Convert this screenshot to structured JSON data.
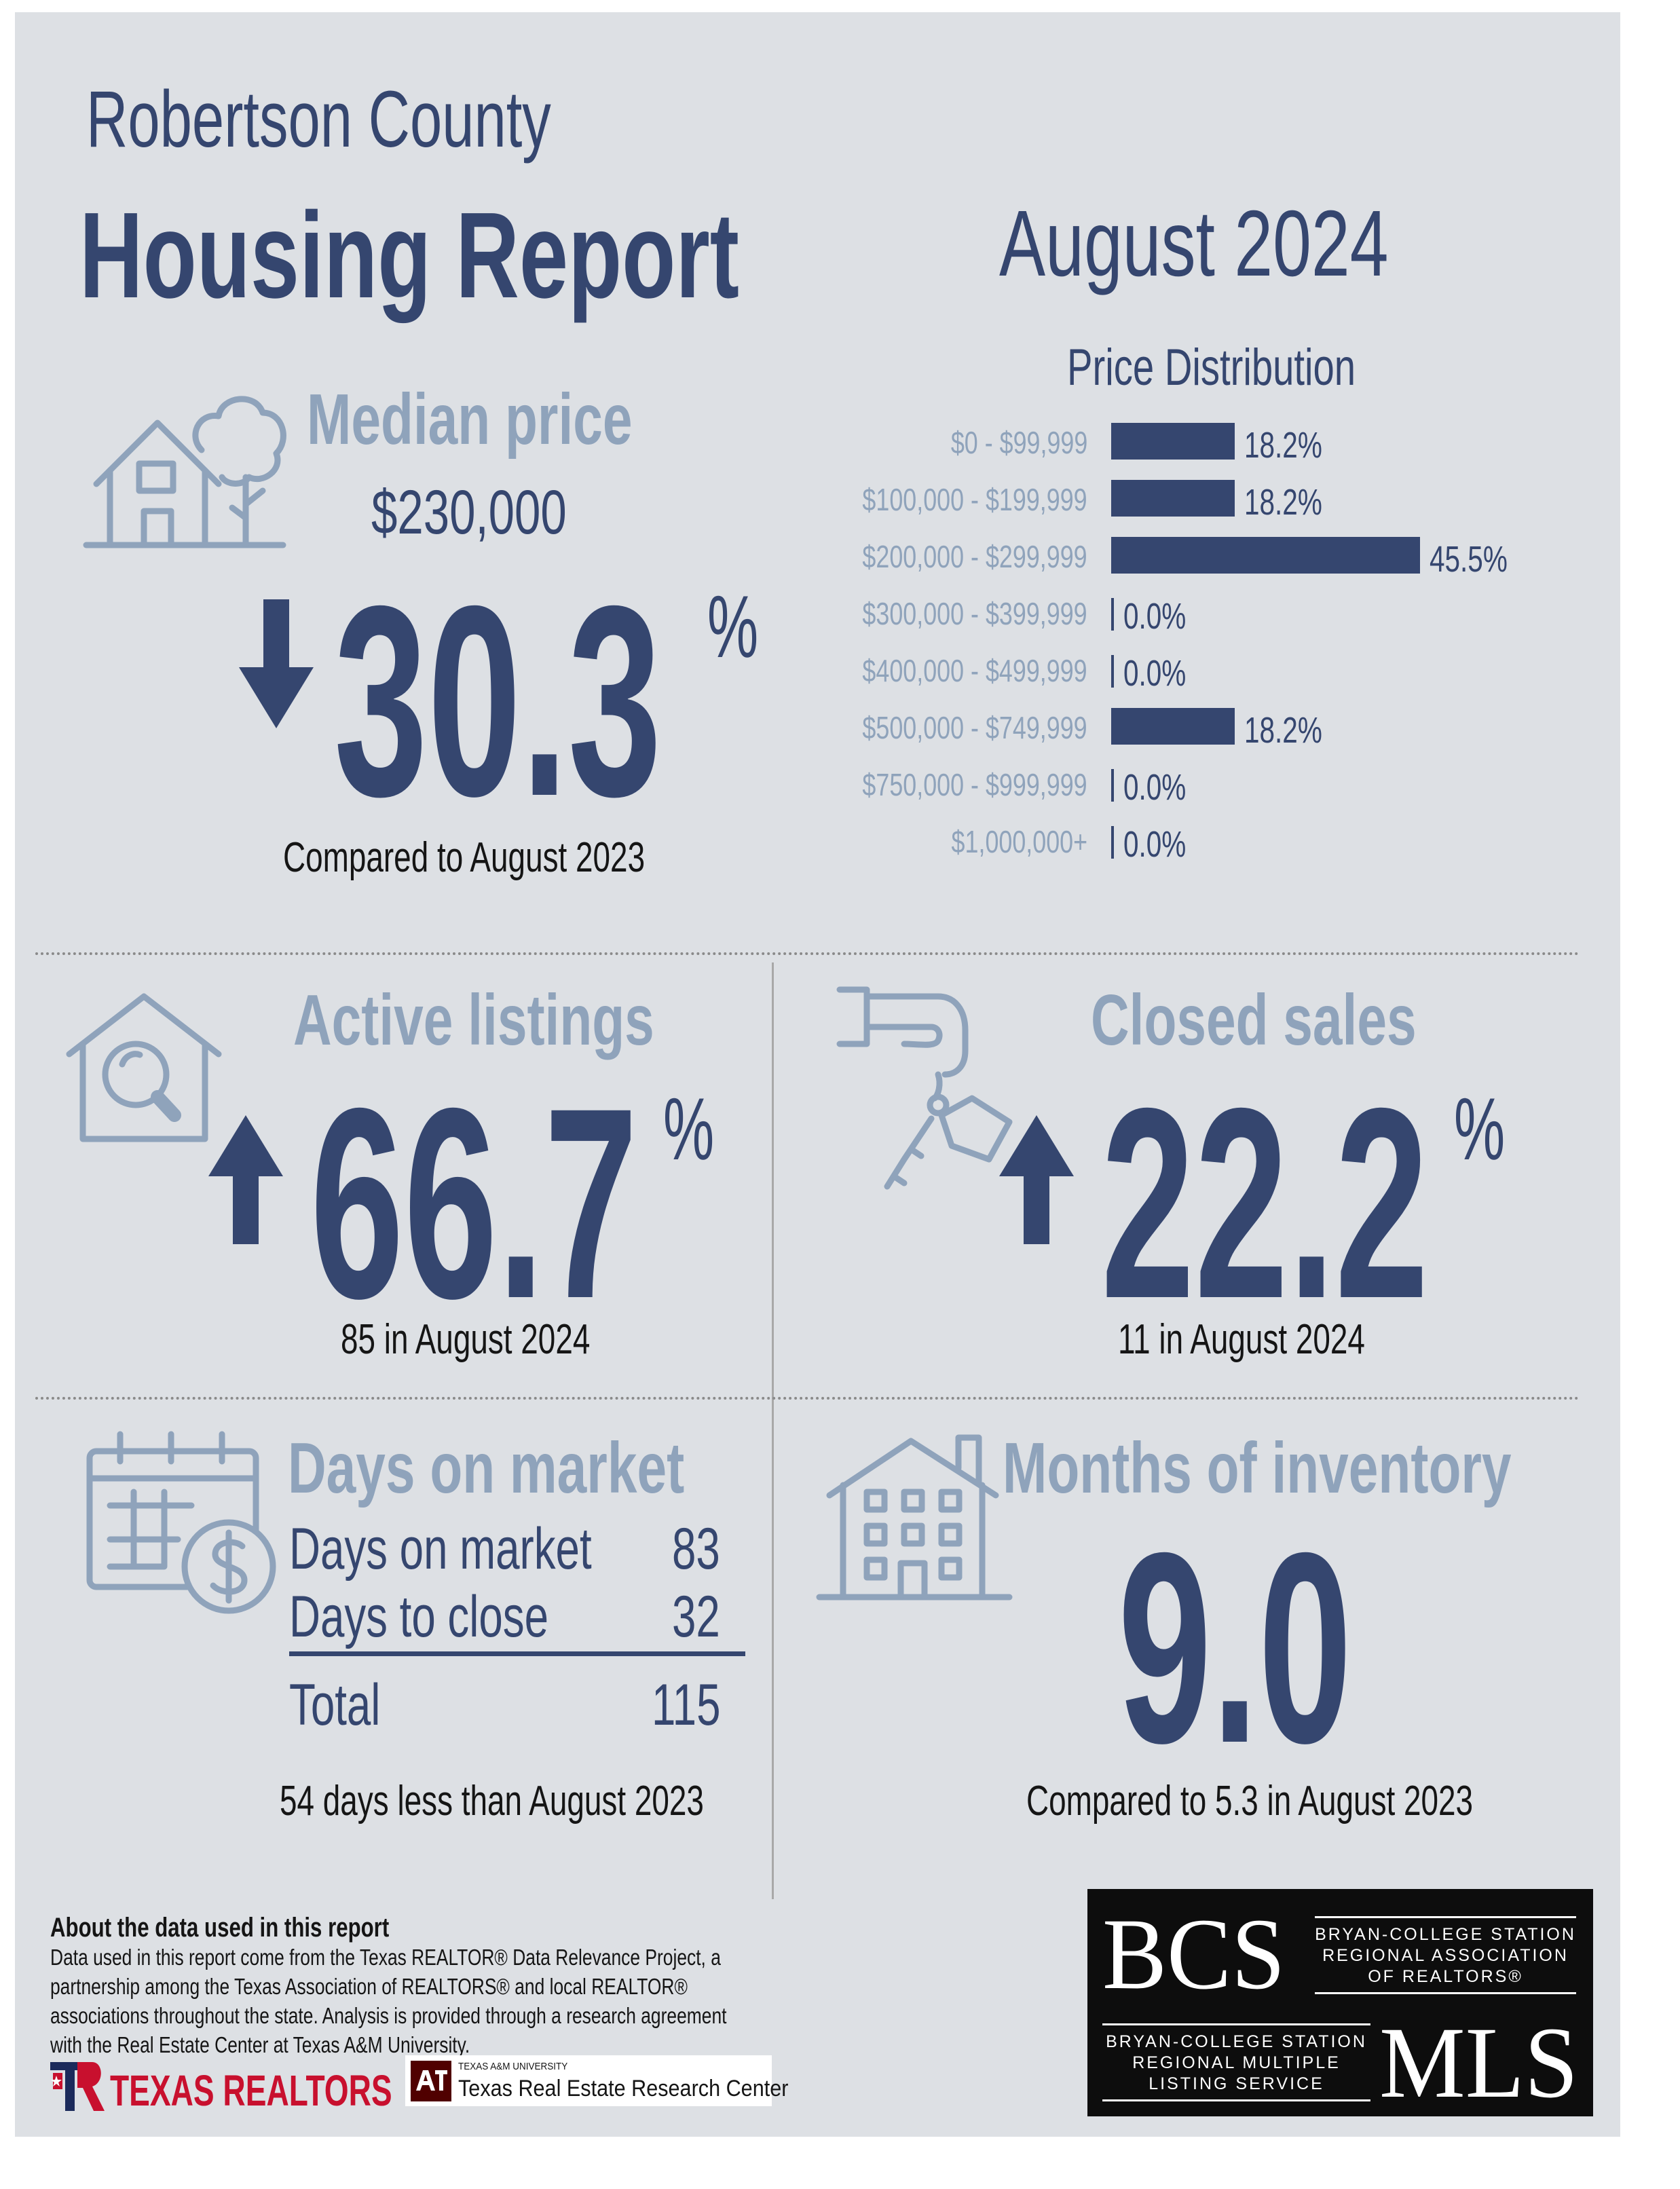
{
  "header": {
    "county": "Robertson County",
    "title": "Housing Report",
    "date": "August 2024"
  },
  "median_price": {
    "label": "Median price",
    "value": "$230,000",
    "change_direction": "down",
    "change": "30.3",
    "percent_sign": "%",
    "comparison": "Compared to August 2023"
  },
  "price_distribution": {
    "title": "Price Distribution",
    "chart_data": {
      "type": "bar",
      "title": "Price Distribution",
      "categories": [
        "$0 - $99,999",
        "$100,000 - $199,999",
        "$200,000 - $299,999",
        "$300,000 - $399,999",
        "$400,000 - $499,999",
        "$500,000 - $749,999",
        "$750,000 - $999,999",
        "$1,000,000+"
      ],
      "values": [
        18.2,
        18.2,
        45.5,
        0.0,
        0.0,
        18.2,
        0.0,
        0.0
      ],
      "value_labels": [
        "18.2%",
        "18.2%",
        "45.5%",
        "0.0%",
        "0.0%",
        "18.2%",
        "0.0%",
        "0.0%"
      ],
      "orientation": "horizontal",
      "xlim": [
        0,
        100
      ],
      "bar_color": "#35466f"
    }
  },
  "active_listings": {
    "label": "Active listings",
    "change_direction": "up",
    "change": "66.7",
    "percent_sign": "%",
    "detail": "85 in August 2024"
  },
  "closed_sales": {
    "label": "Closed sales",
    "change_direction": "up",
    "change": "22.2",
    "percent_sign": "%",
    "detail": "11 in August 2024"
  },
  "days_on_market": {
    "label": "Days on market",
    "rows": [
      {
        "label": "Days on market",
        "value": "83"
      },
      {
        "label": "Days to close",
        "value": "32"
      }
    ],
    "total_label": "Total",
    "total_value": "115",
    "comparison": "54 days less than August 2023"
  },
  "months_inventory": {
    "label": "Months of inventory",
    "value": "9.0",
    "comparison": "Compared to 5.3 in August 2023"
  },
  "footer": {
    "about_title": "About the data used in this report",
    "about_lines": [
      "Data used in this report come from the Texas REALTOR® Data Relevance Project, a",
      "partnership among the Texas Association of REALTORS® and local REALTOR®",
      "associations throughout the state. Analysis is provided through a research agreement",
      "with the Real Estate Center at Texas A&M University."
    ],
    "texas_realtors_logo": "TEXAS REALTORS",
    "tamu_small": "TEXAS A&M UNIVERSITY",
    "tamu_center": "Texas Real Estate Research Center",
    "bcs": {
      "bcs_letters": "BCS",
      "assoc_lines": [
        "BRYAN-COLLEGE STATION",
        "REGIONAL ASSOCIATION",
        "OF REALTORS®"
      ],
      "mls_lines": [
        "BRYAN-COLLEGE STATION",
        "REGIONAL MULTIPLE",
        "LISTING SERVICE"
      ],
      "mls_letters": "MLS"
    }
  },
  "colors": {
    "navy": "#35466f",
    "muted_blue": "#8fa3bb",
    "background": "#dde0e4"
  }
}
